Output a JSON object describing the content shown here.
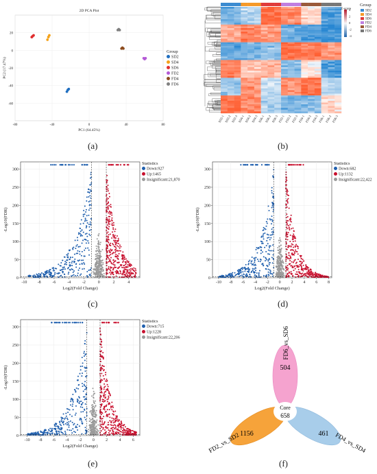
{
  "captions": {
    "a": "(a)",
    "b": "(b)",
    "c": "(c)",
    "d": "(d)",
    "e": "(e)",
    "f": "(f)"
  },
  "pca": {
    "title": "2D PCA Plot",
    "xlabel": "PC1 (64.45%)",
    "ylabel": "PC2 (17.47%)",
    "legend_title": "Group",
    "groups": [
      {
        "name": "SD2",
        "color": "#1f6ec0"
      },
      {
        "name": "SD4",
        "color": "#f5a21a"
      },
      {
        "name": "SD6",
        "color": "#e02f2f"
      },
      {
        "name": "FD2",
        "color": "#b45ad6"
      },
      {
        "name": "FD4",
        "color": "#8c4b1d"
      },
      {
        "name": "FD6",
        "color": "#808080"
      }
    ]
  },
  "heatmap": {
    "group_label": "Group",
    "zscore_label": "Z-score",
    "scale_ticks": [
      "4",
      "2",
      "0",
      "-2",
      "-4"
    ],
    "groups": [
      {
        "name": "SD2",
        "color": "#3b8bd0"
      },
      {
        "name": "SD4",
        "color": "#f59a2a"
      },
      {
        "name": "SD6",
        "color": "#e03b3b"
      },
      {
        "name": "FD2",
        "color": "#c07ee0"
      },
      {
        "name": "FD4",
        "color": "#9a5a3a"
      },
      {
        "name": "FD6",
        "color": "#777777"
      }
    ],
    "samples": [
      "SD2-1",
      "SD2-2",
      "SD2-3",
      "SD4-1",
      "SD4-2",
      "SD4-3",
      "SD6-1",
      "SD6-2",
      "SD6-3",
      "FD2-1",
      "FD2-2",
      "FD2-3",
      "FD4-1",
      "FD4-2",
      "FD4-3",
      "FD6-1",
      "FD6-2",
      "FD6-3"
    ]
  },
  "volcano_c": {
    "xlabel": "Log2(Fold Change)",
    "ylabel": "-Log10(FDR)",
    "legend_title": "Statistics",
    "down": "Down:927",
    "up": "Up:1465",
    "insig": "Insignificant:21,870",
    "x_ticks": [
      "-10",
      "-8",
      "-6",
      "-4",
      "-2",
      "0",
      "2",
      "4"
    ],
    "y_ticks": [
      "0",
      "50",
      "100",
      "150",
      "200",
      "250",
      "300"
    ]
  },
  "volcano_d": {
    "xlabel": "Log2(Fold Change)",
    "ylabel": "-Log10(FDR)",
    "legend_title": "Statistics",
    "down": "Down:682",
    "up": "Up:1132",
    "insig": "Insignificant:22,422",
    "x_ticks": [
      "-10",
      "-8",
      "-6",
      "-4",
      "-2",
      "0",
      "2",
      "4",
      "6",
      "8"
    ],
    "y_ticks": [
      "0",
      "50",
      "100",
      "150",
      "200",
      "250",
      "300"
    ]
  },
  "volcano_e": {
    "xlabel": "Log2(Fold Change)",
    "ylabel": "-Log10(FDR)",
    "legend_title": "Statistics",
    "down": "Down:715",
    "up": "Up:1228",
    "insig": "Insignificant:22,206",
    "x_ticks": [
      "-10",
      "-8",
      "-6",
      "-4",
      "-2",
      "0",
      "2",
      "4",
      "6"
    ],
    "y_ticks": [
      "0",
      "50",
      "100",
      "150",
      "200",
      "250",
      "300"
    ]
  },
  "venn": {
    "top_label": "FD6_vs_SD6",
    "top_value": "504",
    "left_label": "FD2_vs_SD2",
    "left_value": "1156",
    "right_label": "FD4_vs_SD4",
    "right_value": "461",
    "core_label": "Core",
    "core_value": "658"
  },
  "colors": {
    "down": "#1f5fae",
    "up": "#c8102e",
    "insig": "#9a9a9a"
  },
  "chart_data": [
    {
      "type": "scatter",
      "title": "2D PCA Plot",
      "xlabel": "PC1 (64.45%)",
      "ylabel": "PC2 (17.47%)",
      "xlim": [
        -80,
        80
      ],
      "ylim": [
        -80,
        40
      ],
      "x_ticks": [
        "-80",
        "-40",
        "0",
        "40",
        "80"
      ],
      "y_ticks": [
        "20",
        "0",
        "-20",
        "-40",
        "-60"
      ],
      "series": [
        {
          "name": "SD2",
          "x": [
            -24,
            -23,
            -22
          ],
          "y": [
            -47,
            -45,
            -44
          ]
        },
        {
          "name": "SD4",
          "x": [
            -45,
            -44,
            -43
          ],
          "y": [
            12,
            15,
            17
          ]
        },
        {
          "name": "SD6",
          "x": [
            -62,
            -61,
            -60
          ],
          "y": [
            15,
            16,
            17
          ]
        },
        {
          "name": "FD2",
          "x": [
            59,
            60,
            61
          ],
          "y": [
            -9,
            -10,
            -9
          ]
        },
        {
          "name": "FD4",
          "x": [
            35,
            36,
            37
          ],
          "y": [
            2,
            3,
            2
          ]
        },
        {
          "name": "FD6",
          "x": [
            31,
            32,
            33
          ],
          "y": [
            23,
            24,
            23
          ]
        }
      ]
    },
    {
      "type": "scatter",
      "xlabel": "Log2(Fold Change)",
      "ylabel": "-Log10(FDR)",
      "xlim": [
        -10.5,
        5.5
      ],
      "ylim": [
        0,
        320
      ],
      "series": [
        {
          "name": "Down:927",
          "x": [
            -8,
            -6,
            -5,
            -4,
            -3,
            -2,
            -1.5
          ],
          "y": [
            13,
            60,
            120,
            30,
            200,
            90,
            310
          ]
        },
        {
          "name": "Up:1465",
          "x": [
            1.5,
            2,
            2.5,
            3,
            3.5,
            4
          ],
          "y": [
            280,
            160,
            240,
            60,
            110,
            20
          ]
        },
        {
          "name": "Insignificant:21,870",
          "x": [
            -0.5,
            0,
            0.5
          ],
          "y": [
            5,
            10,
            5
          ]
        }
      ]
    },
    {
      "type": "scatter",
      "xlabel": "Log2(Fold Change)",
      "ylabel": "-Log10(FDR)",
      "xlim": [
        -11,
        8.5
      ],
      "ylim": [
        0,
        320
      ],
      "series": [
        {
          "name": "Down:682",
          "x": [
            -8,
            -6,
            -4,
            -3,
            -2,
            -1.5
          ],
          "y": [
            10,
            40,
            20,
            130,
            200,
            300
          ]
        },
        {
          "name": "Up:1132",
          "x": [
            1.5,
            2,
            2.5,
            3,
            4,
            6
          ],
          "y": [
            300,
            210,
            100,
            60,
            20,
            10
          ]
        },
        {
          "name": "Insignificant:22,422",
          "x": [
            -0.5,
            0,
            0.5
          ],
          "y": [
            5,
            10,
            5
          ]
        }
      ]
    },
    {
      "type": "scatter",
      "xlabel": "Log2(Fold Change)",
      "ylabel": "-Log10(FDR)",
      "xlim": [
        -11,
        7
      ],
      "ylim": [
        0,
        320
      ],
      "series": [
        {
          "name": "Down:715",
          "x": [
            -8,
            -6,
            -4,
            -3,
            -2,
            -1.5
          ],
          "y": [
            8,
            40,
            160,
            100,
            200,
            310
          ]
        },
        {
          "name": "Up:1228",
          "x": [
            1.5,
            2,
            2.5,
            3,
            4,
            5
          ],
          "y": [
            310,
            150,
            100,
            60,
            20,
            8
          ]
        },
        {
          "name": "Insignificant:22,206",
          "x": [
            -0.5,
            0,
            0.5
          ],
          "y": [
            5,
            10,
            5
          ]
        }
      ]
    }
  ]
}
